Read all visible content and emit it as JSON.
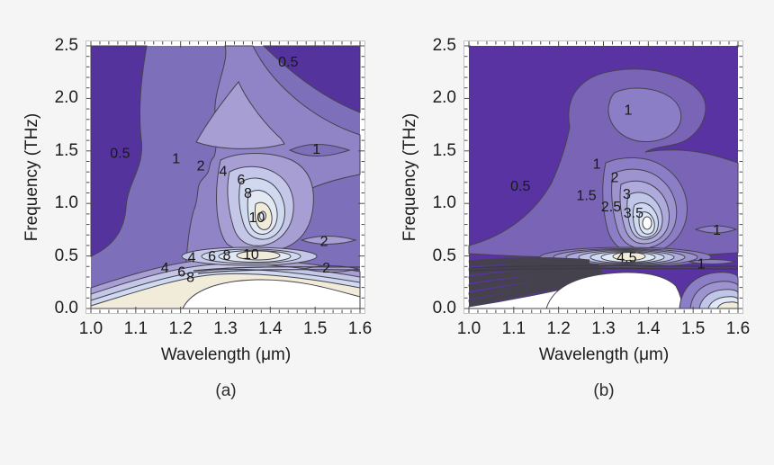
{
  "figure": {
    "background": "#f5f5f6"
  },
  "panels": [
    {
      "caption": "(a)",
      "x_axis": {
        "label": "Wavelength (μm)",
        "tick_labels": [
          "1.0",
          "1.1",
          "1.2",
          "1.3",
          "1.4",
          "1.5",
          "1.6"
        ],
        "range": [
          1.0,
          1.6
        ],
        "minor_step": 0.02
      },
      "y_axis": {
        "label": "Frequency (THz)",
        "tick_labels": [
          "0.0",
          "0.5",
          "1.0",
          "1.5",
          "2.0",
          "2.5"
        ],
        "range": [
          0.0,
          2.5
        ],
        "minor_step": 0.1
      },
      "palette": {
        "band_colors": [
          "#55339c",
          "#7e6fba",
          "#9084c6",
          "#a79fd3",
          "#c4c7e8",
          "#cfdaf0",
          "#e2e9f3",
          "#f1ecd9",
          "#ffffff"
        ],
        "line_color": "#45424e"
      }
    },
    {
      "caption": "(b)",
      "x_axis": {
        "label": "Wavelength (μm)",
        "tick_labels": [
          "1.0",
          "1.1",
          "1.2",
          "1.3",
          "1.4",
          "1.5",
          "1.6"
        ],
        "range": [
          1.0,
          1.6
        ],
        "minor_step": 0.02
      },
      "y_axis": {
        "label": "Frequency (THz)",
        "tick_labels": [
          "0.0",
          "0.5",
          "1.0",
          "1.5",
          "2.0",
          "2.5"
        ],
        "range": [
          0.0,
          2.5
        ],
        "minor_step": 0.1
      },
      "palette": {
        "band_colors": [
          "#5933a2",
          "#7a64b6",
          "#8c7ec6",
          "#9d93cf",
          "#aeabdc",
          "#bfc6e8",
          "#cfd9f0",
          "#dfe8f5",
          "#f1ecd7",
          "#ffffff"
        ],
        "line_color": "#45424e"
      }
    }
  ],
  "chart_data": [
    {
      "type": "contour",
      "panel": "(a)",
      "xlabel": "Wavelength (μm)",
      "ylabel": "Frequency (THz)",
      "xlim": [
        1.0,
        1.6
      ],
      "ylim": [
        0.0,
        2.5
      ],
      "x_ticks": [
        1.0,
        1.1,
        1.2,
        1.3,
        1.4,
        1.5,
        1.6
      ],
      "y_ticks": [
        0.0,
        0.5,
        1.0,
        1.5,
        2.0,
        2.5
      ],
      "contour_levels": [
        0.5,
        1,
        2,
        4,
        6,
        8,
        10
      ],
      "colormap": "dark purple (low) to lavender, pale blue, cream and white (high)",
      "labeled_contours": [
        {
          "level": "0.5",
          "wavelength": 1.44,
          "frequency": 2.35
        },
        {
          "level": "0.5",
          "wavelength": 1.065,
          "frequency": 1.48
        },
        {
          "level": "1",
          "wavelength": 1.19,
          "frequency": 1.43
        },
        {
          "level": "2",
          "wavelength": 1.245,
          "frequency": 1.36
        },
        {
          "level": "4",
          "wavelength": 1.295,
          "frequency": 1.31
        },
        {
          "level": "6",
          "wavelength": 1.335,
          "frequency": 1.23
        },
        {
          "level": "8",
          "wavelength": 1.35,
          "frequency": 1.1
        },
        {
          "level": "10",
          "wavelength": 1.37,
          "frequency": 0.87
        },
        {
          "level": "1",
          "wavelength": 1.503,
          "frequency": 1.52
        },
        {
          "level": "2",
          "wavelength": 1.52,
          "frequency": 0.64
        },
        {
          "level": "2",
          "wavelength": 1.525,
          "frequency": 0.39
        },
        {
          "level": "4",
          "wavelength": 1.225,
          "frequency": 0.49
        },
        {
          "level": "6",
          "wavelength": 1.27,
          "frequency": 0.5
        },
        {
          "level": "8",
          "wavelength": 1.303,
          "frequency": 0.51
        },
        {
          "level": "10",
          "wavelength": 1.357,
          "frequency": 0.52
        },
        {
          "level": "4",
          "wavelength": 1.165,
          "frequency": 0.39
        },
        {
          "level": "6",
          "wavelength": 1.202,
          "frequency": 0.35
        },
        {
          "level": "8",
          "wavelength": 1.222,
          "frequency": 0.3
        }
      ],
      "peaks": [
        {
          "wavelength": 1.37,
          "frequency": 0.87,
          "value": ">10"
        },
        {
          "wavelength": 1.36,
          "frequency": 0.48,
          "value": ">10"
        },
        {
          "wavelength": 1.35,
          "frequency": 0.15,
          "value": ">10 (white region along bottom edge)"
        }
      ],
      "minima": [
        {
          "region": "top-left corner",
          "value": "<0.5"
        },
        {
          "region": "top-right corner",
          "value": "<0.5"
        }
      ]
    },
    {
      "type": "contour",
      "panel": "(b)",
      "xlabel": "Wavelength (μm)",
      "ylabel": "Frequency (THz)",
      "xlim": [
        1.0,
        1.6
      ],
      "ylim": [
        0.0,
        2.5
      ],
      "x_ticks": [
        1.0,
        1.1,
        1.2,
        1.3,
        1.4,
        1.5,
        1.6
      ],
      "y_ticks": [
        0.0,
        0.5,
        1.0,
        1.5,
        2.0,
        2.5
      ],
      "contour_levels": [
        0.5,
        1,
        1.5,
        2,
        2.5,
        3,
        3.5,
        4,
        4.5
      ],
      "colormap": "dark purple (low) to lavender, pale blue, cream and white (high)",
      "labeled_contours": [
        {
          "level": "1",
          "wavelength": 1.355,
          "frequency": 1.89
        },
        {
          "level": "0.5",
          "wavelength": 1.115,
          "frequency": 1.17
        },
        {
          "level": "1",
          "wavelength": 1.285,
          "frequency": 1.38
        },
        {
          "level": "2",
          "wavelength": 1.325,
          "frequency": 1.25
        },
        {
          "level": "1.5",
          "wavelength": 1.262,
          "frequency": 1.08
        },
        {
          "level": "3",
          "wavelength": 1.352,
          "frequency": 1.09
        },
        {
          "level": "2.5",
          "wavelength": 1.317,
          "frequency": 0.97
        },
        {
          "level": "3.5",
          "wavelength": 1.367,
          "frequency": 0.91
        },
        {
          "level": "4.5",
          "wavelength": 1.352,
          "frequency": 0.49
        },
        {
          "level": "1",
          "wavelength": 1.553,
          "frequency": 0.75
        },
        {
          "level": "1",
          "wavelength": 1.518,
          "frequency": 0.43
        }
      ],
      "peaks": [
        {
          "wavelength": 1.385,
          "frequency": 0.82,
          "value": ">3.5"
        },
        {
          "wavelength": 1.35,
          "frequency": 0.48,
          "value": ">4.5"
        },
        {
          "wavelength": 1.33,
          "frequency": 0.15,
          "value": "high (white region along bottom edge)"
        }
      ],
      "minima": [
        {
          "region": "entire upper-left and upper-right background",
          "value": "<0.5"
        }
      ]
    }
  ]
}
